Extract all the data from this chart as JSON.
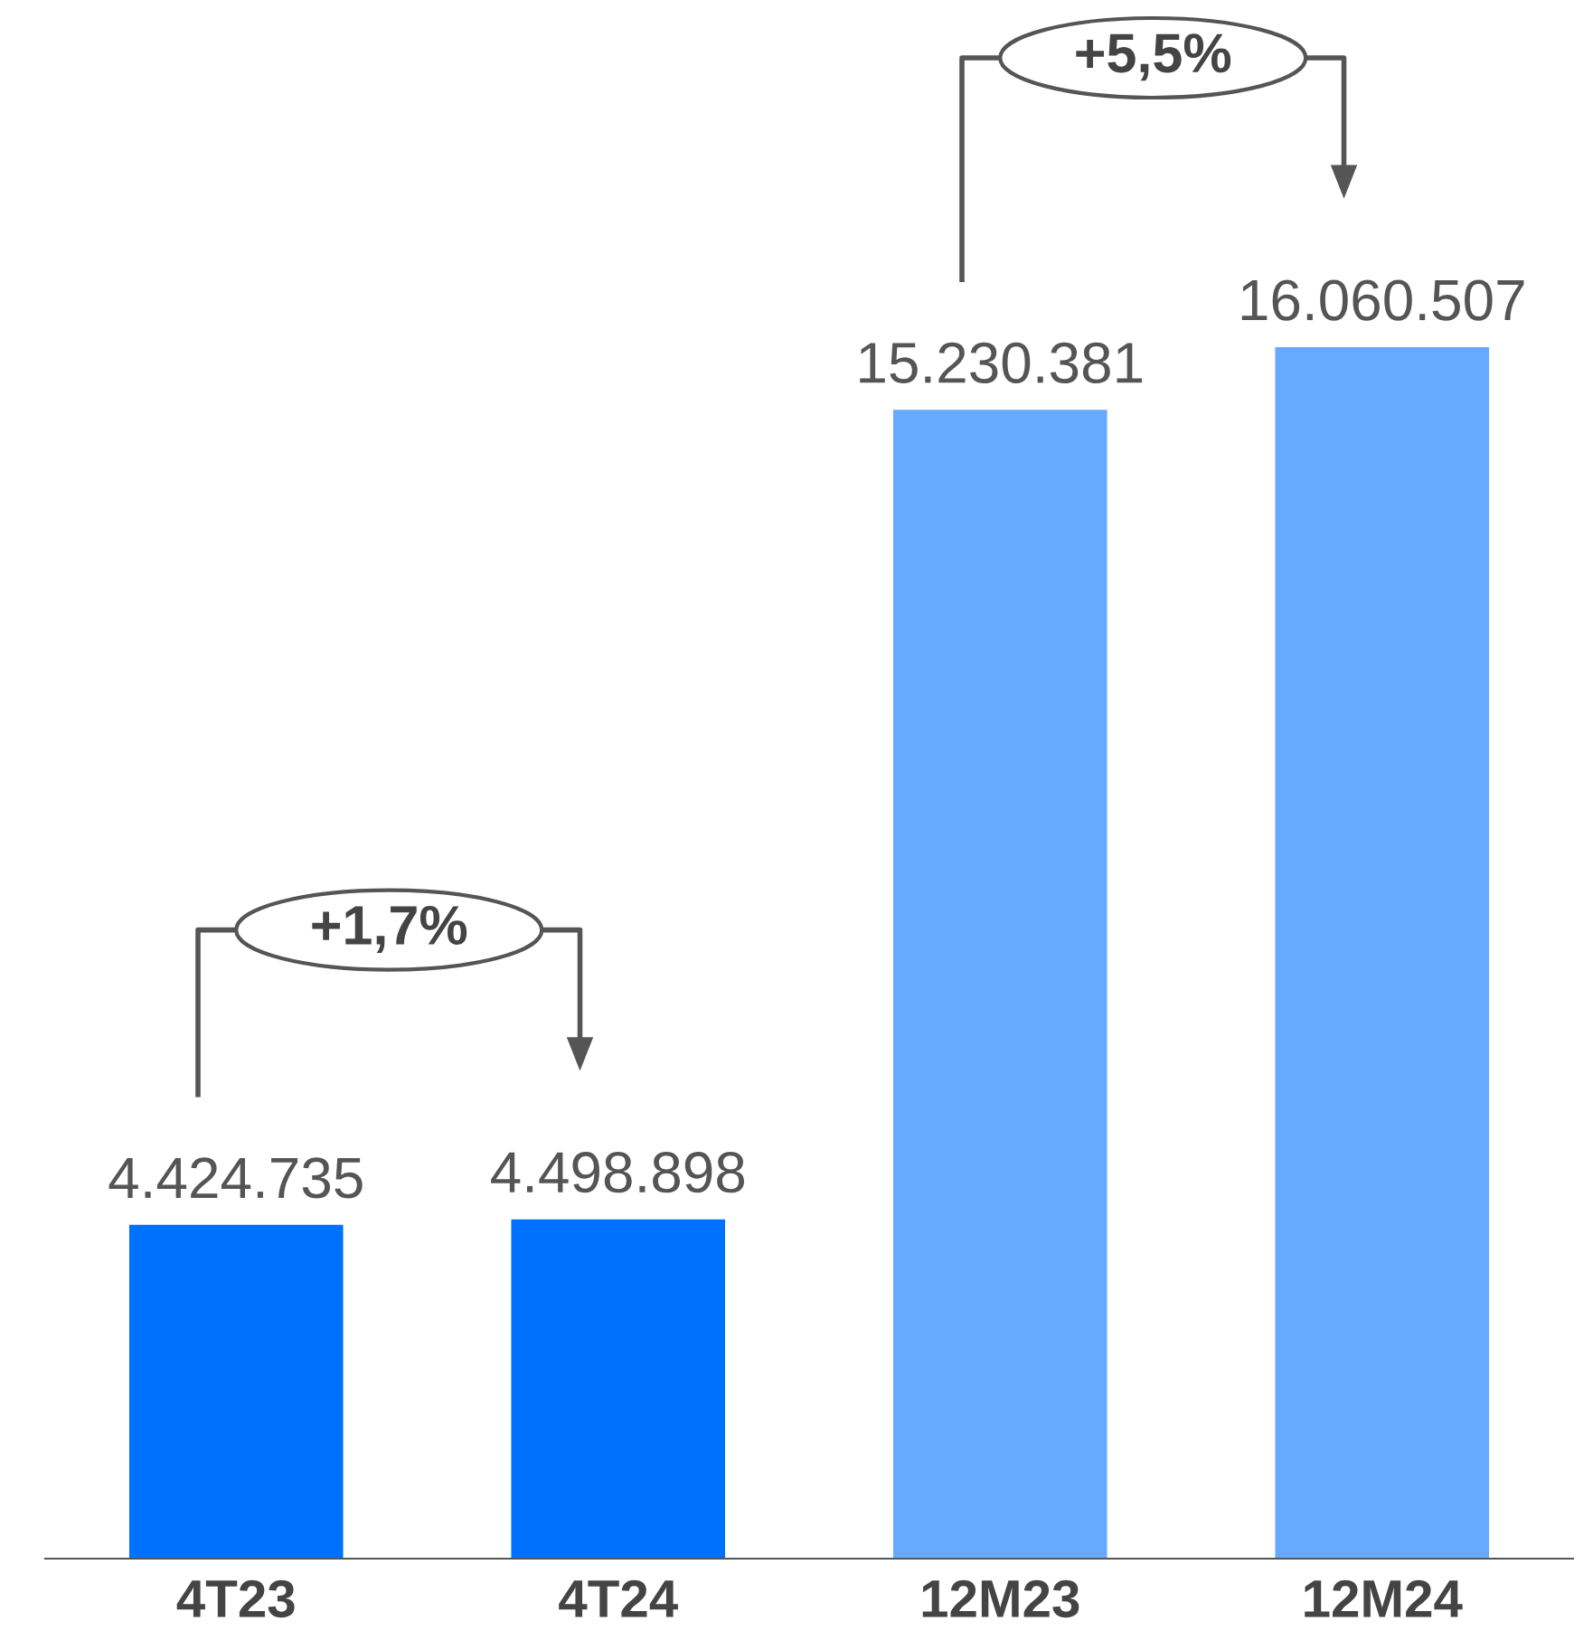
{
  "chart_data": {
    "type": "bar",
    "categories": [
      "4T23",
      "4T24",
      "12M23",
      "12M24"
    ],
    "values": [
      4424735,
      4498898,
      15230381,
      16060507
    ],
    "value_labels": [
      "4.424.735",
      "4.498.898",
      "15.230.381",
      "16.060.507"
    ],
    "colors": [
      "#0070ff",
      "#0070ff",
      "#66aaff",
      "#66aaff"
    ],
    "annotations": [
      "+1,7%",
      "+5,5%"
    ],
    "grid": false,
    "legend": false
  }
}
